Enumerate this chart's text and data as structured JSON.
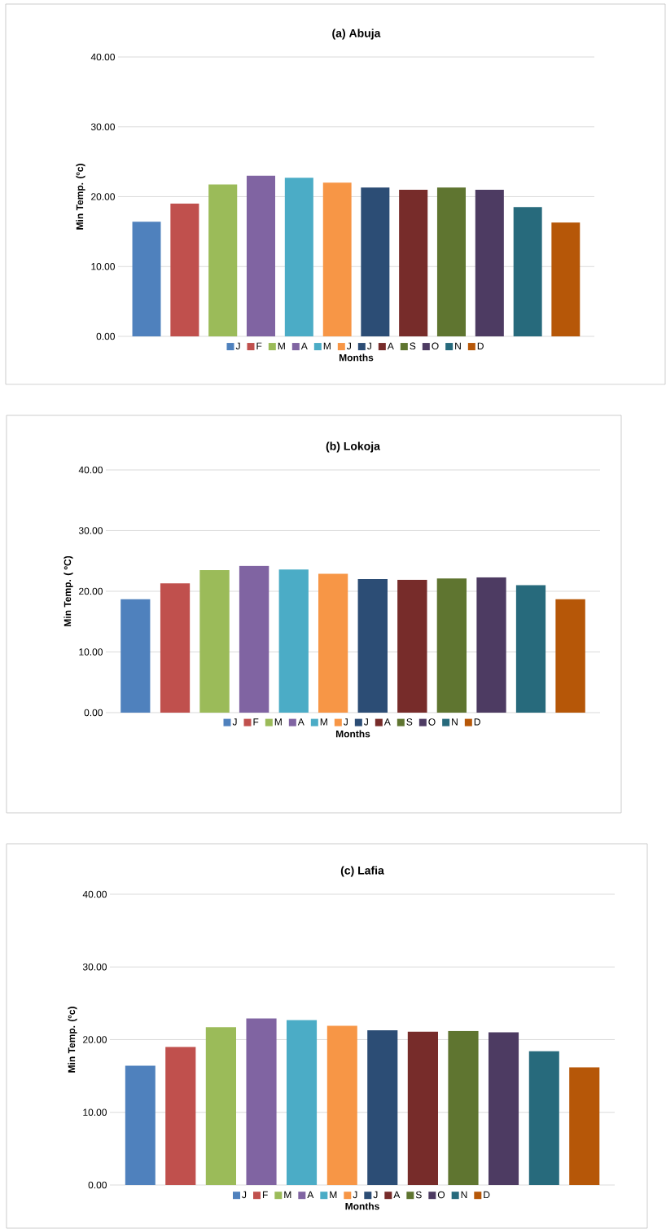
{
  "chart_data": [
    {
      "type": "bar",
      "title": "(a) Abuja",
      "xlabel": "Months",
      "ylabel": "Min Temp. (ºc)",
      "categories": [
        null
      ],
      "series": [
        {
          "name": "J",
          "color": "#4f81bd",
          "values": [
            16.4
          ]
        },
        {
          "name": "F",
          "color": "#c0504d",
          "values": [
            19.0
          ]
        },
        {
          "name": "M",
          "color": "#9bbb59",
          "values": [
            21.75
          ]
        },
        {
          "name": "A",
          "color": "#8064a2",
          "values": [
            23.0
          ]
        },
        {
          "name": "M",
          "color": "#4bacc6",
          "values": [
            22.7
          ]
        },
        {
          "name": "J",
          "color": "#f79646",
          "values": [
            22.0
          ]
        },
        {
          "name": "J",
          "color": "#2c4d75",
          "values": [
            21.3
          ]
        },
        {
          "name": "A",
          "color": "#772c2a",
          "values": [
            21.0
          ]
        },
        {
          "name": "S",
          "color": "#5f7530",
          "values": [
            21.3
          ]
        },
        {
          "name": "O",
          "color": "#4d3b62",
          "values": [
            21.0
          ]
        },
        {
          "name": "N",
          "color": "#276a7c",
          "values": [
            18.5
          ]
        },
        {
          "name": "D",
          "color": "#b65708",
          "values": [
            16.3
          ]
        }
      ],
      "ylim": [
        0,
        40
      ],
      "yticks": [
        {
          "value": 0,
          "label": "0.00"
        },
        {
          "value": 10,
          "label": "10.00"
        },
        {
          "value": 20,
          "label": "20.00"
        },
        {
          "value": 30,
          "label": "30.00"
        },
        {
          "value": 40,
          "label": "40.00"
        }
      ],
      "grid": "y",
      "legend": "bottom",
      "tick_labels": "y"
    },
    {
      "type": "bar",
      "title": "(b) Lokoja",
      "xlabel": "Months",
      "ylabel": "Min Temp. ( ºC)",
      "categories": [
        null
      ],
      "series": [
        {
          "name": "J",
          "color": "#4f81bd",
          "values": [
            18.7
          ]
        },
        {
          "name": "F",
          "color": "#c0504d",
          "values": [
            21.3
          ]
        },
        {
          "name": "M",
          "color": "#9bbb59",
          "values": [
            23.5
          ]
        },
        {
          "name": "A",
          "color": "#8064a2",
          "values": [
            24.2
          ]
        },
        {
          "name": "M",
          "color": "#4bacc6",
          "values": [
            23.6
          ]
        },
        {
          "name": "J",
          "color": "#f79646",
          "values": [
            22.9
          ]
        },
        {
          "name": "J",
          "color": "#2c4d75",
          "values": [
            22.0
          ]
        },
        {
          "name": "A",
          "color": "#772c2a",
          "values": [
            21.9
          ]
        },
        {
          "name": "S",
          "color": "#5f7530",
          "values": [
            22.1
          ]
        },
        {
          "name": "O",
          "color": "#4d3b62",
          "values": [
            22.3
          ]
        },
        {
          "name": "N",
          "color": "#276a7c",
          "values": [
            21.0
          ]
        },
        {
          "name": "D",
          "color": "#b65708",
          "values": [
            18.7
          ]
        }
      ],
      "ylim": [
        0,
        40
      ],
      "yticks": [
        {
          "value": 0,
          "label": "0.00"
        },
        {
          "value": 10,
          "label": "10.00"
        },
        {
          "value": 20,
          "label": "20.00"
        },
        {
          "value": 30,
          "label": "30.00"
        },
        {
          "value": 40,
          "label": "40.00"
        }
      ],
      "grid": "y",
      "legend": "bottom",
      "tick_labels": "y"
    },
    {
      "type": "bar",
      "title": "(c) Lafia",
      "xlabel": "Months",
      "ylabel": "Min Temp. (ºc)",
      "categories": [
        null
      ],
      "series": [
        {
          "name": "J",
          "color": "#4f81bd",
          "values": [
            16.4
          ]
        },
        {
          "name": "F",
          "color": "#c0504d",
          "values": [
            19.0
          ]
        },
        {
          "name": "M",
          "color": "#9bbb59",
          "values": [
            21.7
          ]
        },
        {
          "name": "A",
          "color": "#8064a2",
          "values": [
            22.9
          ]
        },
        {
          "name": "M",
          "color": "#4bacc6",
          "values": [
            22.7
          ]
        },
        {
          "name": "J",
          "color": "#f79646",
          "values": [
            21.9
          ]
        },
        {
          "name": "J",
          "color": "#2c4d75",
          "values": [
            21.3
          ]
        },
        {
          "name": "A",
          "color": "#772c2a",
          "values": [
            21.1
          ]
        },
        {
          "name": "S",
          "color": "#5f7530",
          "values": [
            21.2
          ]
        },
        {
          "name": "O",
          "color": "#4d3b62",
          "values": [
            21.0
          ]
        },
        {
          "name": "N",
          "color": "#276a7c",
          "values": [
            18.4
          ]
        },
        {
          "name": "D",
          "color": "#b65708",
          "values": [
            16.2
          ]
        }
      ],
      "ylim": [
        0,
        40
      ],
      "yticks": [
        {
          "value": 0,
          "label": "0.00"
        },
        {
          "value": 10,
          "label": "10.00"
        },
        {
          "value": 20,
          "label": "20.00"
        },
        {
          "value": 30,
          "label": "30.00"
        },
        {
          "value": 40,
          "label": "40.00"
        }
      ],
      "grid": "y",
      "legend": "bottom",
      "tick_labels": "y"
    }
  ]
}
